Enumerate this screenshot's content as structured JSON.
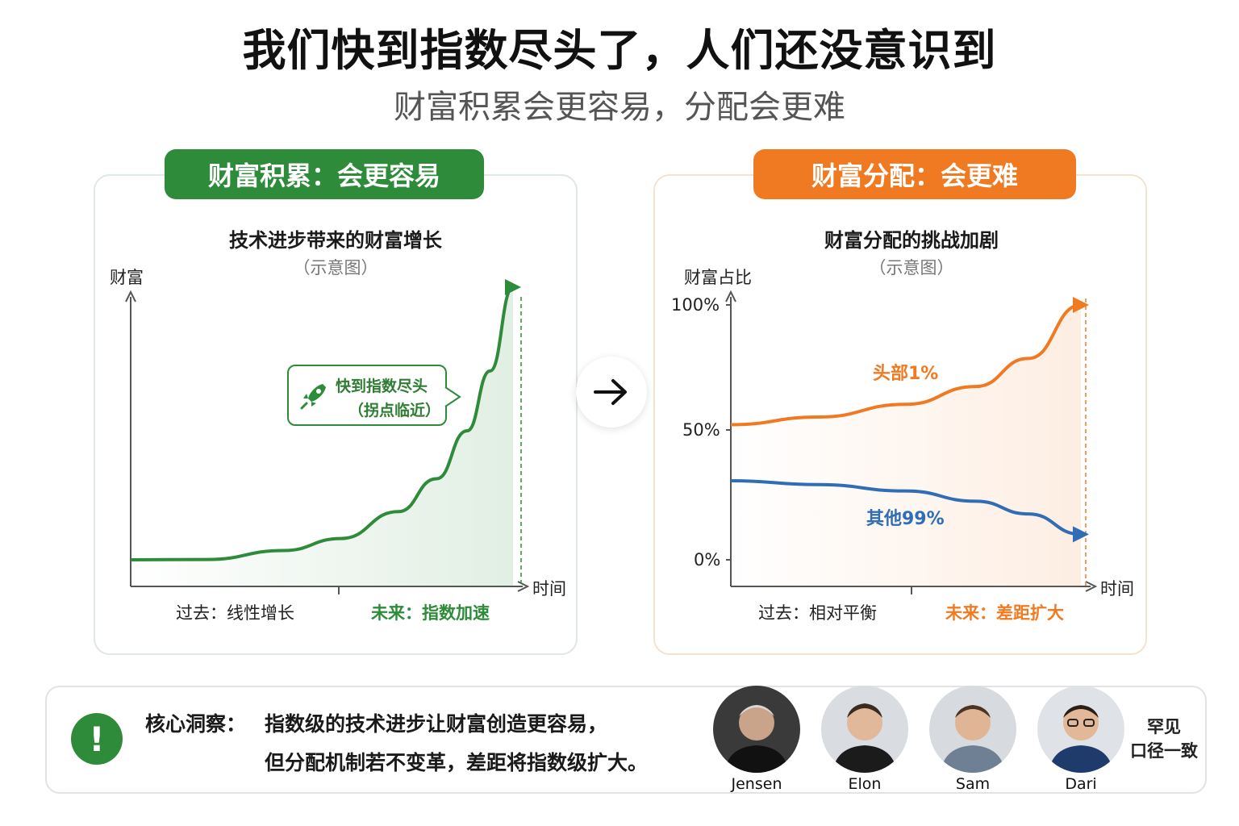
{
  "title": "我们快到指数尽头了，人们还没意识到",
  "subtitle": "财富积累会更容易，分配会更难",
  "left_panel": {
    "badge": "财富积累：会更容易",
    "chart_title": "技术进步带来的财富增长",
    "chart_subtitle": "（示意图）",
    "y_label": "财富",
    "x_label": "时间",
    "callout_line1": "快到指数尽头",
    "callout_line2": "（拐点临近）",
    "past_label": "过去：线性增长",
    "future_label": "未来：指数加速",
    "accent": "#2e8b3a"
  },
  "right_panel": {
    "badge": "财富分配：会更难",
    "chart_title": "财富分配的挑战加剧",
    "chart_subtitle": "（示意图）",
    "y_label": "财富占比",
    "x_label": "时间",
    "ticks": [
      "100%",
      "50%",
      "0%"
    ],
    "past_label": "过去：相对平衡",
    "future_label": "未来：差距扩大",
    "accent": "#f07a22"
  },
  "insight": {
    "label": "核心洞察：",
    "line1": "指数级的技术进步让财富创造更容易，",
    "line2": "但分配机制若不变革，差距将指数级扩大。",
    "icon": "exclamation-icon"
  },
  "people": [
    {
      "name": "Jensen"
    },
    {
      "name": "Elon"
    },
    {
      "name": "Sam"
    },
    {
      "name": "Dari"
    }
  ],
  "rare_consensus_line1": "罕见",
  "rare_consensus_line2": "口径一致",
  "chart_data": [
    {
      "type": "line",
      "title": "技术进步带来的财富增长",
      "ylabel": "财富",
      "xlabel": "时间",
      "series": [
        {
          "x": [
            0,
            0.2,
            0.4,
            0.55,
            0.7,
            0.8,
            0.88,
            0.94,
            1.0
          ],
          "y": [
            0.08,
            0.09,
            0.12,
            0.16,
            0.25,
            0.36,
            0.52,
            0.72,
            1.0
          ]
        }
      ]
    },
    {
      "type": "line",
      "title": "财富分配的挑战加剧",
      "ylabel": "财富占比",
      "xlabel": "时间",
      "ylim": [
        0,
        100
      ],
      "yticks": [
        "0%",
        "50%",
        "100%"
      ],
      "series": [
        {
          "name": "头部1%",
          "color": "#f07a22",
          "x": [
            0,
            0.25,
            0.5,
            0.7,
            0.85,
            1.0
          ],
          "y": [
            53,
            56,
            61,
            68,
            79,
            100
          ]
        },
        {
          "name": "其他99%",
          "color": "#2f6db5",
          "x": [
            0,
            0.25,
            0.5,
            0.7,
            0.85,
            1.0
          ],
          "y": [
            31,
            29.5,
            27,
            23,
            18,
            10
          ]
        }
      ]
    }
  ]
}
